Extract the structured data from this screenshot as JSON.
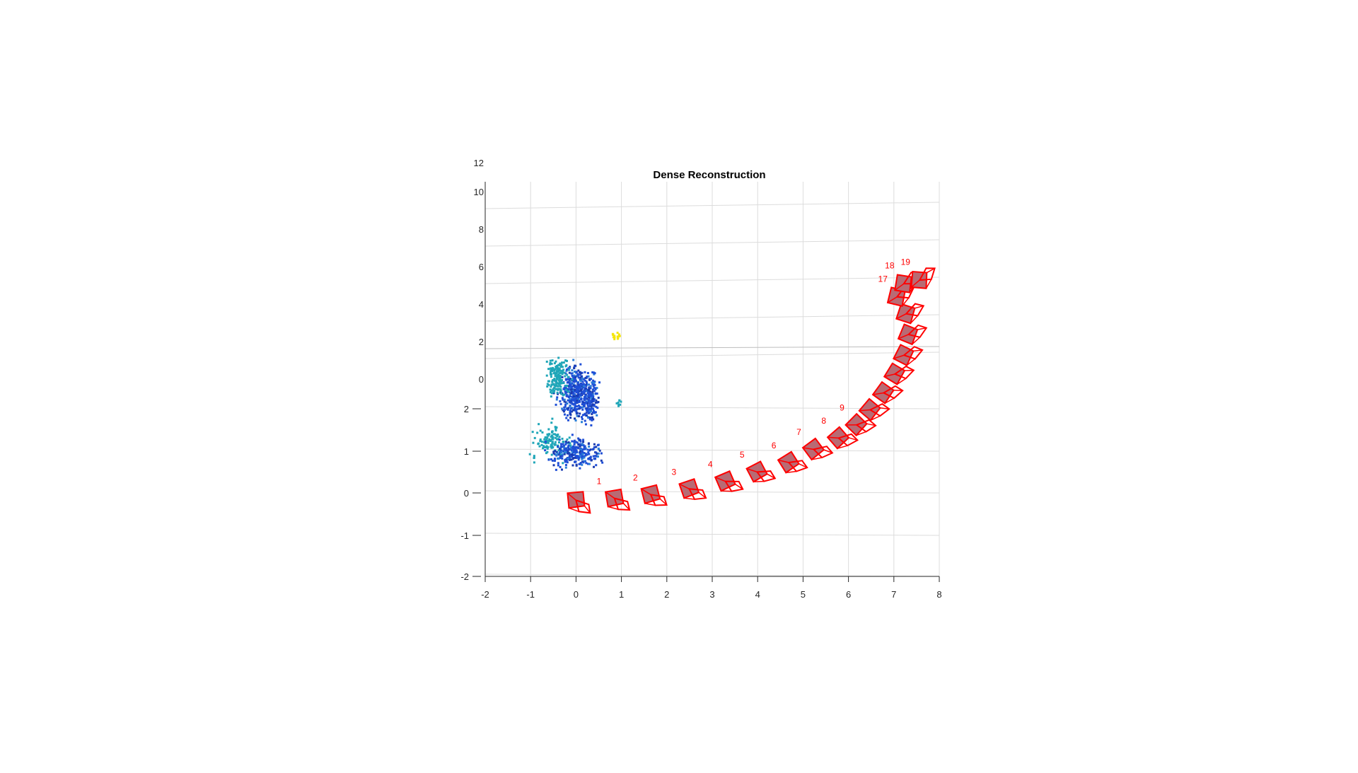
{
  "chart_data": {
    "type": "scatter",
    "title": "Dense Reconstruction",
    "xlabel": "",
    "ylabel": "",
    "grid": true,
    "x_ticks": [
      "-2",
      "-1",
      "0",
      "1",
      "2",
      "3",
      "4",
      "5",
      "6",
      "7",
      "8"
    ],
    "y_ticks_lower": [
      "-2",
      "-1",
      "0",
      "1",
      "2"
    ],
    "y_ticks_upper": [
      "0",
      "2",
      "4",
      "6",
      "8",
      "10",
      "12"
    ],
    "xlim": [
      -2,
      8
    ],
    "ylim": [
      -2,
      12
    ],
    "colors": {
      "camera": "#ff0000",
      "camera_face": "#b86b74",
      "grid": "#dcdcdc",
      "axis": "#262626",
      "points_low": "#1f4fd6",
      "points_mid": "#1fa6b8",
      "points_high": "#f5e60a"
    },
    "cameras": [
      {
        "label": "",
        "x": 0.0,
        "y": 0.2
      },
      {
        "label": "1",
        "x": 0.85,
        "y": 0.25
      },
      {
        "label": "2",
        "x": 1.65,
        "y": 0.35
      },
      {
        "label": "3",
        "x": 2.5,
        "y": 0.5
      },
      {
        "label": "4",
        "x": 3.3,
        "y": 0.7
      },
      {
        "label": "5",
        "x": 4.0,
        "y": 0.95
      },
      {
        "label": "6",
        "x": 4.7,
        "y": 1.2
      },
      {
        "label": "7",
        "x": 5.25,
        "y": 1.55
      },
      {
        "label": "8",
        "x": 5.8,
        "y": 1.85
      },
      {
        "label": "9",
        "x": 6.2,
        "y": 2.2
      },
      {
        "label": "",
        "x": 6.5,
        "y": 2.6
      },
      {
        "label": "",
        "x": 6.8,
        "y": 3.05
      },
      {
        "label": "",
        "x": 7.05,
        "y": 3.55
      },
      {
        "label": "",
        "x": 7.25,
        "y": 4.05
      },
      {
        "label": "",
        "x": 7.35,
        "y": 4.6
      },
      {
        "label": "",
        "x": 7.3,
        "y": 5.15
      },
      {
        "label": "17",
        "x": 7.1,
        "y": 5.6
      },
      {
        "label": "18",
        "x": 7.25,
        "y": 5.95
      },
      {
        "label": "19",
        "x": 7.6,
        "y": 6.05
      }
    ],
    "point_cloud": {
      "description_colormap": "parula",
      "clusters": [
        {
          "cx": 0.0,
          "cy": 2.7,
          "sx": 0.28,
          "sy": 0.55,
          "n": 420,
          "tone": "low"
        },
        {
          "cx": -0.4,
          "cy": 3.1,
          "sx": 0.2,
          "sy": 0.45,
          "n": 160,
          "tone": "mid"
        },
        {
          "cx": -0.55,
          "cy": 1.4,
          "sx": 0.35,
          "sy": 0.35,
          "n": 120,
          "tone": "mid"
        },
        {
          "cx": 0.0,
          "cy": 1.1,
          "sx": 0.45,
          "sy": 0.3,
          "n": 260,
          "tone": "low"
        },
        {
          "cx": 0.35,
          "cy": 2.5,
          "sx": 0.12,
          "sy": 0.5,
          "n": 110,
          "tone": "low"
        },
        {
          "cx": 0.9,
          "cy": 4.2,
          "sx": 0.08,
          "sy": 0.08,
          "n": 14,
          "tone": "high"
        },
        {
          "cx": 0.95,
          "cy": 2.4,
          "sx": 0.05,
          "sy": 0.1,
          "n": 8,
          "tone": "mid"
        }
      ]
    }
  }
}
